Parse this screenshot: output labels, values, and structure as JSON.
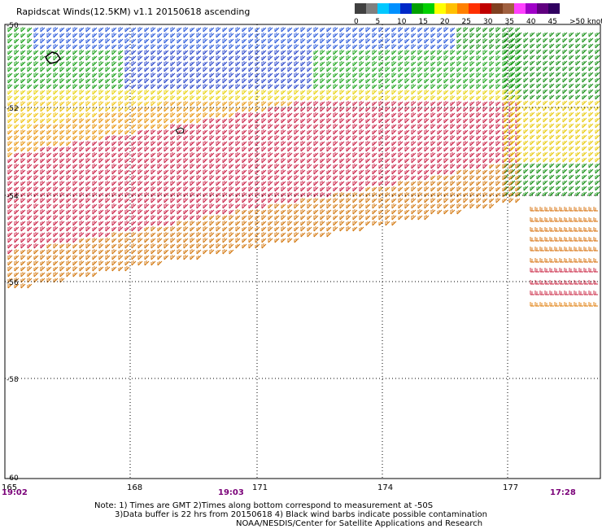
{
  "title": "Rapidscat Winds(12.5KM) v1.1 20150618 ascending",
  "colorbar": {
    "swatches": [
      "#404040",
      "#808080",
      "#00c8ff",
      "#0090ff",
      "#0028c8",
      "#00a000",
      "#00d000",
      "#ffff00",
      "#ffc000",
      "#ff8000",
      "#ff3000",
      "#c00000",
      "#804020",
      "#a06040",
      "#ff40ff",
      "#a000c8",
      "#600080",
      "#300060"
    ],
    "labels": [
      "0",
      "5",
      "10",
      "15",
      "20",
      "25",
      "30",
      "35",
      "40",
      "45",
      ">50 knots"
    ]
  },
  "map": {
    "lat_labels": [
      "-50",
      "-52",
      "-54",
      "-56",
      "-58",
      "-60"
    ],
    "lon_labels": [
      "165",
      "168",
      "171",
      "174",
      "177"
    ],
    "time_labels": [
      "19:02",
      "19:03",
      "17:28"
    ]
  },
  "notes": [
    "Note: 1) Times are GMT 2)Times along bottom correspond to measurement at -50S",
    "3)Data buffer is 22 hrs from 20150618 4) Black wind barbs indicate possible contamination",
    "NOAA/NESDIS/Center for Satellite Applications and Research"
  ]
}
